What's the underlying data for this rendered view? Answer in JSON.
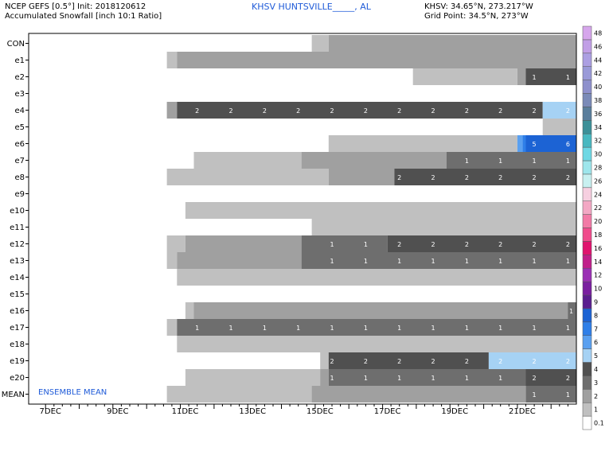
{
  "header": {
    "model_line": "NCEP GEFS [0.5°] Init: 2018120612",
    "variable_line": "Accumulated Snowfall [inch 10:1 Ratio]",
    "station_title": "KHSV HUNTSVILLE_____, AL",
    "station_coords": "KHSV: 34.65°N, 273.217°W",
    "grid_point": "Grid Point: 34.5°N, 273°W"
  },
  "chart_data": {
    "type": "heatmap",
    "title": "Accumulated Snowfall [inch 10:1 Ratio]",
    "annotation": "ENSEMBLE MEAN",
    "x_start": "2018-12-06 12Z",
    "x_end": "2018-12-22 18Z",
    "x_step_hours": 6,
    "xticks": [
      {
        "label": "7DEC",
        "day": 7
      },
      {
        "label": "9DEC",
        "day": 9
      },
      {
        "label": "11DEC",
        "day": 11
      },
      {
        "label": "13DEC",
        "day": 13
      },
      {
        "label": "15DEC",
        "day": 15
      },
      {
        "label": "17DEC",
        "day": 17
      },
      {
        "label": "19DEC",
        "day": 19
      },
      {
        "label": "21DEC",
        "day": 21
      }
    ],
    "members": [
      {
        "name": "CON",
        "segments": [
          {
            "from": 14.9,
            "to": 15.4,
            "bin": 1
          },
          {
            "from": 15.4,
            "to": 22.75,
            "bin": 2
          }
        ],
        "labels": []
      },
      {
        "name": "e1",
        "segments": [
          {
            "from": 10.6,
            "to": 10.9,
            "bin": 1
          },
          {
            "from": 10.9,
            "to": 22.75,
            "bin": 2
          }
        ],
        "labels": []
      },
      {
        "name": "e2",
        "segments": [
          {
            "from": 17.9,
            "to": 21.0,
            "bin": 1
          },
          {
            "from": 21.0,
            "to": 21.25,
            "bin": 2
          },
          {
            "from": 21.25,
            "to": 22.75,
            "bin": 4
          }
        ],
        "labels": [
          {
            "day": 21.5,
            "text": "1"
          },
          {
            "day": 22.5,
            "text": "1"
          }
        ]
      },
      {
        "name": "e3",
        "segments": [],
        "labels": []
      },
      {
        "name": "e4",
        "segments": [
          {
            "from": 10.6,
            "to": 10.9,
            "bin": 2
          },
          {
            "from": 10.9,
            "to": 21.75,
            "bin": 4
          },
          {
            "from": 21.75,
            "to": 22.75,
            "bin": 5
          }
        ],
        "labels": [
          {
            "day": 11.5,
            "text": "2"
          },
          {
            "day": 12.5,
            "text": "2"
          },
          {
            "day": 13.5,
            "text": "2"
          },
          {
            "day": 14.5,
            "text": "2"
          },
          {
            "day": 15.5,
            "text": "2"
          },
          {
            "day": 16.5,
            "text": "2"
          },
          {
            "day": 17.5,
            "text": "2"
          },
          {
            "day": 18.5,
            "text": "2"
          },
          {
            "day": 19.5,
            "text": "2"
          },
          {
            "day": 20.5,
            "text": "2"
          },
          {
            "day": 21.5,
            "text": "2"
          },
          {
            "day": 22.5,
            "text": "2"
          }
        ]
      },
      {
        "name": "e5",
        "segments": [
          {
            "from": 21.75,
            "to": 22.75,
            "bin": 1
          }
        ],
        "labels": []
      },
      {
        "name": "e6",
        "segments": [
          {
            "from": 15.4,
            "to": 21.0,
            "bin": 1
          },
          {
            "from": 21.0,
            "to": 21.15,
            "bin": 6
          },
          {
            "from": 21.15,
            "to": 21.25,
            "bin": 7
          },
          {
            "from": 21.25,
            "to": 22.75,
            "bin": 8
          }
        ],
        "labels": [
          {
            "day": 21.5,
            "text": "5"
          },
          {
            "day": 22.5,
            "text": "6"
          }
        ]
      },
      {
        "name": "e7",
        "segments": [
          {
            "from": 11.4,
            "to": 14.6,
            "bin": 1
          },
          {
            "from": 14.6,
            "to": 18.9,
            "bin": 2
          },
          {
            "from": 18.9,
            "to": 22.75,
            "bin": 3
          }
        ],
        "labels": [
          {
            "day": 19.5,
            "text": "1"
          },
          {
            "day": 20.5,
            "text": "1"
          },
          {
            "day": 21.5,
            "text": "1"
          },
          {
            "day": 22.5,
            "text": "1"
          }
        ]
      },
      {
        "name": "e8",
        "segments": [
          {
            "from": 10.6,
            "to": 15.4,
            "bin": 1
          },
          {
            "from": 15.4,
            "to": 17.35,
            "bin": 2
          },
          {
            "from": 17.35,
            "to": 22.75,
            "bin": 4
          }
        ],
        "labels": [
          {
            "day": 17.5,
            "text": "2"
          },
          {
            "day": 18.5,
            "text": "2"
          },
          {
            "day": 19.5,
            "text": "2"
          },
          {
            "day": 20.5,
            "text": "2"
          },
          {
            "day": 21.5,
            "text": "2"
          },
          {
            "day": 22.5,
            "text": "2"
          }
        ]
      },
      {
        "name": "e9",
        "segments": [],
        "labels": []
      },
      {
        "name": "e10",
        "segments": [
          {
            "from": 11.15,
            "to": 22.75,
            "bin": 1
          }
        ],
        "labels": []
      },
      {
        "name": "e11",
        "segments": [
          {
            "from": 14.9,
            "to": 22.75,
            "bin": 1
          }
        ],
        "labels": []
      },
      {
        "name": "e12",
        "segments": [
          {
            "from": 10.6,
            "to": 11.15,
            "bin": 1
          },
          {
            "from": 11.15,
            "to": 14.6,
            "bin": 2
          },
          {
            "from": 14.6,
            "to": 17.15,
            "bin": 3
          },
          {
            "from": 17.15,
            "to": 22.75,
            "bin": 4
          }
        ],
        "labels": [
          {
            "day": 15.5,
            "text": "1"
          },
          {
            "day": 16.5,
            "text": "1"
          },
          {
            "day": 17.5,
            "text": "2"
          },
          {
            "day": 18.5,
            "text": "2"
          },
          {
            "day": 19.5,
            "text": "2"
          },
          {
            "day": 20.5,
            "text": "2"
          },
          {
            "day": 21.5,
            "text": "2"
          },
          {
            "day": 22.5,
            "text": "2"
          }
        ]
      },
      {
        "name": "e13",
        "segments": [
          {
            "from": 10.6,
            "to": 10.9,
            "bin": 1
          },
          {
            "from": 10.9,
            "to": 14.6,
            "bin": 2
          },
          {
            "from": 14.6,
            "to": 22.75,
            "bin": 3
          }
        ],
        "labels": [
          {
            "day": 15.5,
            "text": "1"
          },
          {
            "day": 16.5,
            "text": "1"
          },
          {
            "day": 17.5,
            "text": "1"
          },
          {
            "day": 18.5,
            "text": "1"
          },
          {
            "day": 19.5,
            "text": "1"
          },
          {
            "day": 20.5,
            "text": "1"
          },
          {
            "day": 21.5,
            "text": "1"
          },
          {
            "day": 22.5,
            "text": "1"
          }
        ]
      },
      {
        "name": "e14",
        "segments": [
          {
            "from": 10.9,
            "to": 22.75,
            "bin": 1
          }
        ],
        "labels": []
      },
      {
        "name": "e15",
        "segments": [],
        "labels": []
      },
      {
        "name": "e16",
        "segments": [
          {
            "from": 11.15,
            "to": 11.4,
            "bin": 1
          },
          {
            "from": 11.4,
            "to": 22.5,
            "bin": 2
          },
          {
            "from": 22.5,
            "to": 22.75,
            "bin": 3
          }
        ],
        "labels": [
          {
            "day": 22.6,
            "text": "1"
          }
        ]
      },
      {
        "name": "e17",
        "segments": [
          {
            "from": 10.6,
            "to": 10.9,
            "bin": 1
          },
          {
            "from": 10.9,
            "to": 22.75,
            "bin": 3
          }
        ],
        "labels": [
          {
            "day": 11.5,
            "text": "1"
          },
          {
            "day": 12.5,
            "text": "1"
          },
          {
            "day": 13.5,
            "text": "1"
          },
          {
            "day": 14.5,
            "text": "1"
          },
          {
            "day": 15.5,
            "text": "1"
          },
          {
            "day": 16.5,
            "text": "1"
          },
          {
            "day": 17.5,
            "text": "1"
          },
          {
            "day": 18.5,
            "text": "1"
          },
          {
            "day": 19.5,
            "text": "1"
          },
          {
            "day": 20.5,
            "text": "1"
          },
          {
            "day": 21.5,
            "text": "1"
          },
          {
            "day": 22.5,
            "text": "1"
          }
        ]
      },
      {
        "name": "e18",
        "segments": [
          {
            "from": 10.9,
            "to": 22.75,
            "bin": 1
          }
        ],
        "labels": []
      },
      {
        "name": "e19",
        "segments": [
          {
            "from": 15.15,
            "to": 15.4,
            "bin": 1
          },
          {
            "from": 15.4,
            "to": 20.15,
            "bin": 4
          },
          {
            "from": 20.15,
            "to": 22.75,
            "bin": 5
          }
        ],
        "labels": [
          {
            "day": 15.5,
            "text": "2"
          },
          {
            "day": 16.5,
            "text": "2"
          },
          {
            "day": 17.5,
            "text": "2"
          },
          {
            "day": 18.5,
            "text": "2"
          },
          {
            "day": 19.5,
            "text": "2"
          },
          {
            "day": 20.5,
            "text": "2"
          },
          {
            "day": 21.5,
            "text": "2"
          },
          {
            "day": 22.5,
            "text": "2"
          }
        ]
      },
      {
        "name": "e20",
        "segments": [
          {
            "from": 11.15,
            "to": 15.15,
            "bin": 1
          },
          {
            "from": 15.15,
            "to": 15.4,
            "bin": 2
          },
          {
            "from": 15.4,
            "to": 21.25,
            "bin": 3
          },
          {
            "from": 21.25,
            "to": 22.75,
            "bin": 4
          }
        ],
        "labels": [
          {
            "day": 15.5,
            "text": "1"
          },
          {
            "day": 16.5,
            "text": "1"
          },
          {
            "day": 17.5,
            "text": "1"
          },
          {
            "day": 18.5,
            "text": "1"
          },
          {
            "day": 19.5,
            "text": "1"
          },
          {
            "day": 20.5,
            "text": "1"
          },
          {
            "day": 21.5,
            "text": "2"
          },
          {
            "day": 22.5,
            "text": "2"
          }
        ]
      },
      {
        "name": "MEAN",
        "segments": [
          {
            "from": 10.6,
            "to": 14.9,
            "bin": 1
          },
          {
            "from": 14.9,
            "to": 21.25,
            "bin": 2
          },
          {
            "from": 21.25,
            "to": 22.75,
            "bin": 3
          }
        ],
        "labels": [
          {
            "day": 21.5,
            "text": "1"
          },
          {
            "day": 22.5,
            "text": "1"
          }
        ]
      }
    ],
    "bin_colors": [
      "#ffffff",
      "#c0c0c0",
      "#a0a0a0",
      "#6e6e6e",
      "#505050",
      "#a6d2f4",
      "#5aa0f0",
      "#2f7fe8",
      "#1c63d4"
    ],
    "colorbar": {
      "levels": [
        "0.1",
        "1",
        "2",
        "3",
        "4",
        "5",
        "6",
        "7",
        "8",
        "9",
        "10",
        "12",
        "14",
        "16",
        "18",
        "20",
        "22",
        "24",
        "26",
        "28",
        "30",
        "32",
        "34",
        "36",
        "38",
        "40",
        "42",
        "44",
        "46",
        "48"
      ],
      "colors": [
        "#ffffff",
        "#c0c0c0",
        "#a0a0a0",
        "#6e6e6e",
        "#505050",
        "#a6d2f4",
        "#5aa0f0",
        "#2f7fe8",
        "#1c63d4",
        "#5b1f8f",
        "#7a1fa0",
        "#9a2fb4",
        "#c01f8a",
        "#e0146e",
        "#f04c8c",
        "#f27aa6",
        "#f3a8c4",
        "#f6cfe0",
        "#c8f0f0",
        "#9ee6ec",
        "#6ed8e4",
        "#48b8c0",
        "#3c9098",
        "#5a7e9c",
        "#7a8ab8",
        "#8e90cc",
        "#9a9ad8",
        "#ac9fe2",
        "#c19fe6",
        "#d6a6ec"
      ]
    }
  }
}
